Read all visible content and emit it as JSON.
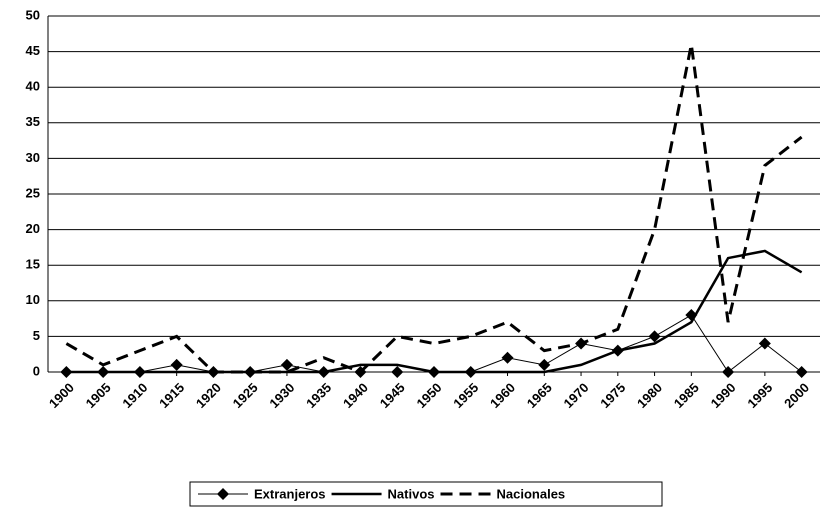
{
  "chart_data": {
    "type": "line",
    "categories": [
      "1900",
      "1905",
      "1910",
      "1915",
      "1920",
      "1925",
      "1930",
      "1935",
      "1940",
      "1945",
      "1950",
      "1955",
      "1960",
      "1965",
      "1970",
      "1975",
      "1980",
      "1985",
      "1990",
      "1995",
      "2000"
    ],
    "series": [
      {
        "name": "Extranjeros",
        "color": "#000000",
        "marker": "diamond",
        "style": "solid",
        "values": [
          0,
          0,
          0,
          1,
          0,
          0,
          1,
          0,
          0,
          0,
          0,
          0,
          2,
          1,
          4,
          3,
          5,
          8,
          0,
          4,
          0
        ]
      },
      {
        "name": "Nativos",
        "color": "#000000",
        "style": "solid",
        "values": [
          0,
          0,
          0,
          0,
          0,
          0,
          0,
          0,
          1,
          1,
          0,
          0,
          0,
          0,
          1,
          3,
          4,
          7,
          16,
          17,
          14
        ]
      },
      {
        "name": "Nacionales",
        "color": "#000000",
        "style": "dashed",
        "values": [
          4,
          1,
          3,
          5,
          0,
          0,
          0,
          2,
          0,
          5,
          4,
          5,
          7,
          3,
          4,
          6,
          20,
          46,
          7,
          29,
          33
        ]
      }
    ],
    "ylim": [
      0,
      50
    ],
    "yticks": [
      0,
      5,
      10,
      15,
      20,
      25,
      30,
      35,
      40,
      45,
      50
    ],
    "grid": true,
    "legend": "bottom"
  }
}
